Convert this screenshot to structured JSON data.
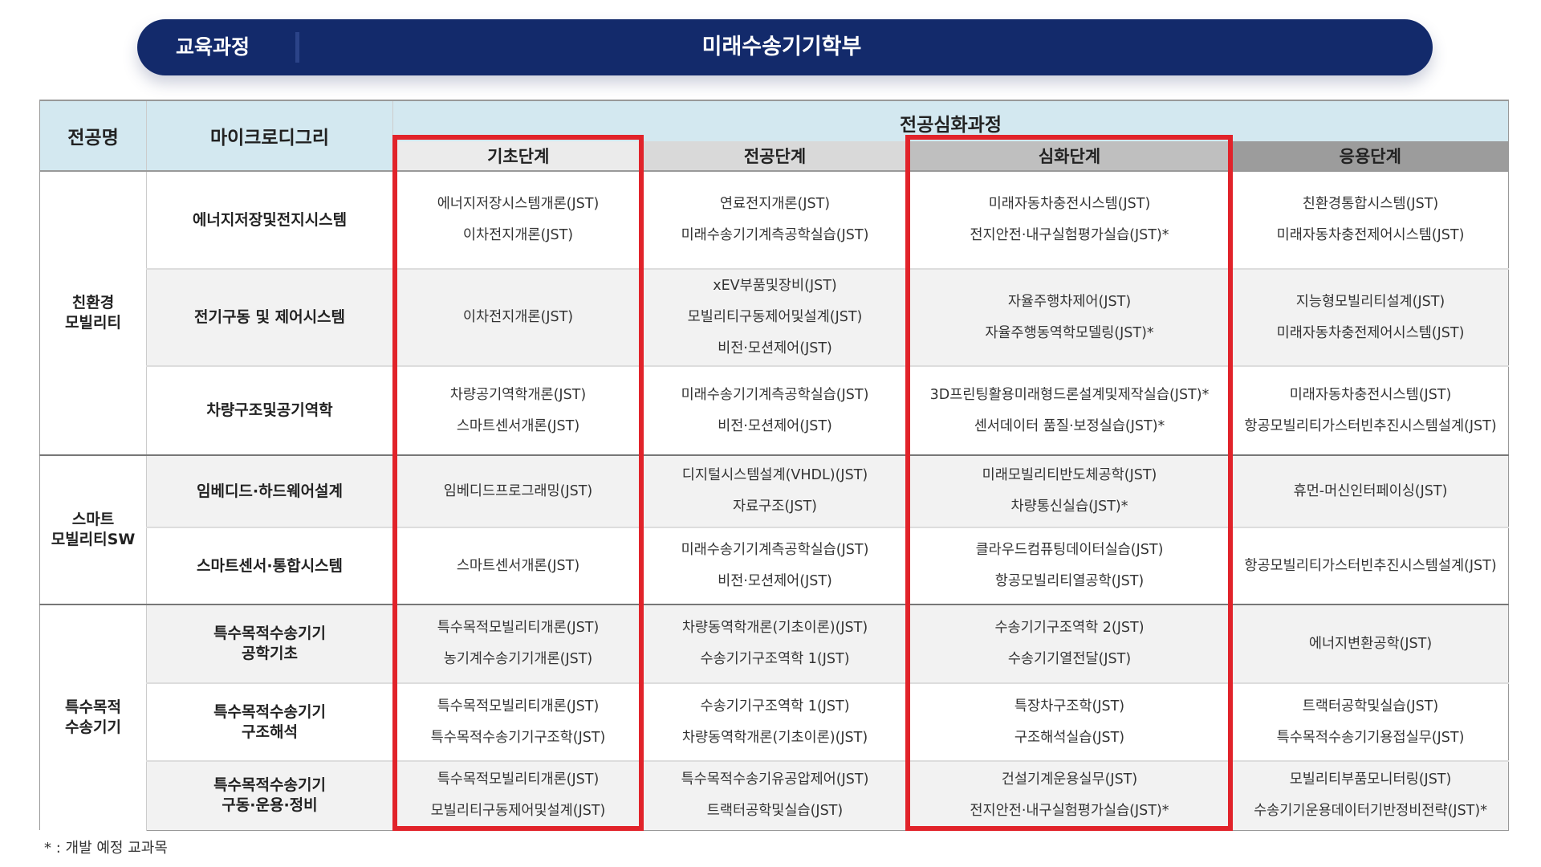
{
  "banner": {
    "left_label": "교육과정",
    "title": "미래수송기기학부"
  },
  "header": {
    "major": "전공명",
    "microdegree": "마이크로디그리",
    "advanced": "전공심화과정",
    "stages": [
      "기초단계",
      "전공단계",
      "심화단계",
      "응용단계"
    ]
  },
  "stage_colors": [
    "#ebebeb",
    "#d9d9d9",
    "#bfbfbf",
    "#9c9c9c"
  ],
  "highlight_color": "#e1232a",
  "groups": [
    {
      "name": [
        "친환경",
        "모빌리티"
      ],
      "rows": [
        {
          "md": [
            "에너지저장및전지시스템"
          ],
          "cells": [
            [
              "에너지저장시스템개론(JST)",
              "이차전지개론(JST)"
            ],
            [
              "연료전지개론(JST)",
              "미래수송기기계측공학실습(JST)"
            ],
            [
              "미래자동차충전시스템(JST)",
              "전지안전·내구실험평가실습(JST)*"
            ],
            [
              "친환경통합시스템(JST)",
              "미래자동차충전제어시스템(JST)"
            ]
          ]
        },
        {
          "md": [
            "전기구동 및 제어시스템"
          ],
          "cells": [
            [
              "이차전지개론(JST)"
            ],
            [
              "xEV부품및장비(JST)",
              "모빌리티구동제어및설계(JST)",
              "비전·모션제어(JST)"
            ],
            [
              "자율주행차제어(JST)",
              "자율주행동역학모델링(JST)*"
            ],
            [
              "지능형모빌리티설계(JST)",
              "미래자동차충전제어시스템(JST)"
            ]
          ]
        },
        {
          "md": [
            "차량구조및공기역학"
          ],
          "cells": [
            [
              "차량공기역학개론(JST)",
              "스마트센서개론(JST)"
            ],
            [
              "미래수송기기계측공학실습(JST)",
              "비전·모션제어(JST)"
            ],
            [
              "3D프린팅활용미래형드론설계및제작실습(JST)*",
              "센서데이터 품질·보정실습(JST)*"
            ],
            [
              "미래자동차충전시스템(JST)",
              "항공모빌리티가스터빈추진시스템설계(JST)"
            ]
          ]
        }
      ]
    },
    {
      "name": [
        "스마트",
        "모빌리티SW"
      ],
      "rows": [
        {
          "md": [
            "임베디드·하드웨어설계"
          ],
          "cells": [
            [
              "임베디드프로그래밍(JST)"
            ],
            [
              "디지털시스템설계(VHDL)(JST)",
              "자료구조(JST)"
            ],
            [
              "미래모빌리티반도체공학(JST)",
              "차량통신실습(JST)*"
            ],
            [
              "휴먼-머신인터페이싱(JST)"
            ]
          ]
        },
        {
          "md": [
            "스마트센서·통합시스템"
          ],
          "cells": [
            [
              "스마트센서개론(JST)"
            ],
            [
              "미래수송기기계측공학실습(JST)",
              "비전·모션제어(JST)"
            ],
            [
              "클라우드컴퓨팅데이터실습(JST)",
              "항공모빌리티열공학(JST)"
            ],
            [
              "항공모빌리티가스터빈추진시스템설계(JST)"
            ]
          ]
        }
      ]
    },
    {
      "name": [
        "특수목적",
        "수송기기"
      ],
      "rows": [
        {
          "md": [
            "특수목적수송기기",
            "공학기초"
          ],
          "cells": [
            [
              "특수목적모빌리티개론(JST)",
              "농기계수송기기개론(JST)"
            ],
            [
              "차량동역학개론(기초이론)(JST)",
              "수송기기구조역학 1(JST)"
            ],
            [
              "수송기기구조역학 2(JST)",
              "수송기기열전달(JST)"
            ],
            [
              "에너지변환공학(JST)"
            ]
          ]
        },
        {
          "md": [
            "특수목적수송기기",
            "구조해석"
          ],
          "cells": [
            [
              "특수목적모빌리티개론(JST)",
              "특수목적수송기기구조학(JST)"
            ],
            [
              "수송기기구조역학 1(JST)",
              "차량동역학개론(기초이론)(JST)"
            ],
            [
              "특장차구조학(JST)",
              "구조해석실습(JST)"
            ],
            [
              "트랙터공학및실습(JST)",
              "특수목적수송기기용접실무(JST)"
            ]
          ]
        },
        {
          "md": [
            "특수목적수송기기",
            "구동·운용·정비"
          ],
          "cells": [
            [
              "특수목적모빌리티개론(JST)",
              "모빌리티구동제어및설계(JST)"
            ],
            [
              "특수목적수송기유공압제어(JST)",
              "트랙터공학및실습(JST)"
            ],
            [
              "건설기계운용실무(JST)",
              "전지안전·내구실험평가실습(JST)*"
            ],
            [
              "모빌리티부품모니터링(JST)",
              "수송기기운용데이터기반정비전략(JST)*"
            ]
          ]
        }
      ]
    }
  ],
  "footnote": "* :  개발 예정 교과목"
}
